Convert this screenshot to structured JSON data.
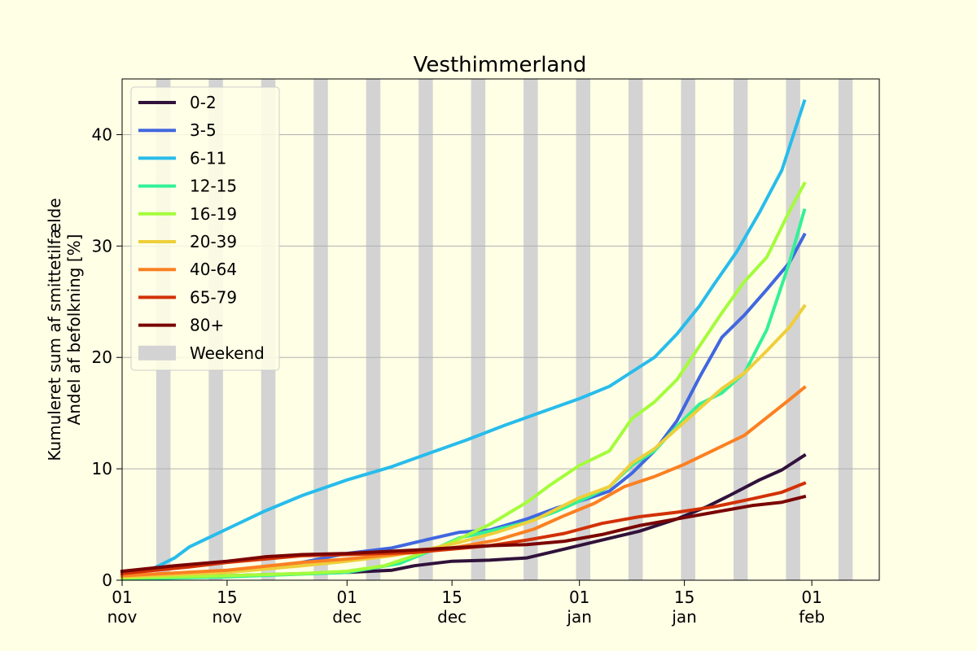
{
  "chart_data": {
    "type": "line",
    "title": "Vesthimmerland",
    "ylabel_line1": "Kumuleret sum af smittetilfælde",
    "ylabel_line2": "Andel af befolkning [%]",
    "xlabel": "",
    "ylim": [
      0,
      45
    ],
    "yticks": [
      0,
      10,
      20,
      30,
      40
    ],
    "xlim": [
      "2021-11-01",
      "2022-02-10"
    ],
    "xticks": [
      {
        "date": "2021-11-01",
        "day": "01",
        "month": "nov"
      },
      {
        "date": "2021-11-15",
        "day": "15",
        "month": "nov"
      },
      {
        "date": "2021-12-01",
        "day": "01",
        "month": "dec"
      },
      {
        "date": "2021-12-15",
        "day": "15",
        "month": "dec"
      },
      {
        "date": "2022-01-01",
        "day": "01",
        "month": "jan"
      },
      {
        "date": "2022-01-15",
        "day": "15",
        "month": "jan"
      },
      {
        "date": "2022-02-01",
        "day": "01",
        "month": "feb"
      }
    ],
    "grid": "y",
    "legend": "top-left",
    "weekend_label": "Weekend",
    "weekend_color": "#d3d3d3",
    "weekends": [
      "2021-11-06",
      "2021-11-13",
      "2021-11-20",
      "2021-11-27",
      "2021-12-04",
      "2021-12-11",
      "2021-12-18",
      "2021-12-25",
      "2022-01-01",
      "2022-01-08",
      "2022-01-15",
      "2022-01-22",
      "2022-01-29",
      "2022-02-05"
    ],
    "series": [
      {
        "name": "0-2",
        "color": "#30123b",
        "points": [
          [
            "2021-11-01",
            0.2
          ],
          [
            "2021-11-15",
            0.4
          ],
          [
            "2021-12-01",
            0.7
          ],
          [
            "2021-12-07",
            0.9
          ],
          [
            "2021-12-10",
            1.3
          ],
          [
            "2021-12-15",
            1.7
          ],
          [
            "2021-12-20",
            1.8
          ],
          [
            "2021-12-25",
            2.0
          ],
          [
            "2021-12-30",
            2.8
          ],
          [
            "2022-01-04",
            3.6
          ],
          [
            "2022-01-09",
            4.4
          ],
          [
            "2022-01-14",
            5.5
          ],
          [
            "2022-01-18",
            6.6
          ],
          [
            "2022-01-21",
            7.6
          ],
          [
            "2022-01-25",
            9.0
          ],
          [
            "2022-01-28",
            9.9
          ],
          [
            "2022-01-31",
            11.2
          ]
        ]
      },
      {
        "name": "3-5",
        "color": "#4167e0",
        "points": [
          [
            "2021-11-01",
            0.2
          ],
          [
            "2021-11-15",
            0.8
          ],
          [
            "2021-11-25",
            1.6
          ],
          [
            "2021-12-01",
            2.4
          ],
          [
            "2021-12-07",
            2.9
          ],
          [
            "2021-12-12",
            3.7
          ],
          [
            "2021-12-16",
            4.3
          ],
          [
            "2021-12-20",
            4.5
          ],
          [
            "2021-12-25",
            5.5
          ],
          [
            "2021-12-29",
            6.5
          ],
          [
            "2022-01-02",
            7.3
          ],
          [
            "2022-01-05",
            8.0
          ],
          [
            "2022-01-08",
            9.6
          ],
          [
            "2022-01-11",
            11.6
          ],
          [
            "2022-01-14",
            14.3
          ],
          [
            "2022-01-17",
            18.2
          ],
          [
            "2022-01-20",
            21.8
          ],
          [
            "2022-01-23",
            23.8
          ],
          [
            "2022-01-26",
            26.1
          ],
          [
            "2022-01-29",
            28.5
          ],
          [
            "2022-01-31",
            31.0
          ]
        ]
      },
      {
        "name": "6-11",
        "color": "#28bceb",
        "points": [
          [
            "2021-11-01",
            0.3
          ],
          [
            "2021-11-05",
            1.0
          ],
          [
            "2021-11-08",
            2.0
          ],
          [
            "2021-11-10",
            3.0
          ],
          [
            "2021-11-15",
            4.6
          ],
          [
            "2021-11-20",
            6.2
          ],
          [
            "2021-11-25",
            7.6
          ],
          [
            "2021-12-01",
            9.0
          ],
          [
            "2021-12-07",
            10.2
          ],
          [
            "2021-12-12",
            11.4
          ],
          [
            "2021-12-17",
            12.6
          ],
          [
            "2021-12-22",
            13.9
          ],
          [
            "2021-12-27",
            15.1
          ],
          [
            "2022-01-01",
            16.3
          ],
          [
            "2022-01-05",
            17.4
          ],
          [
            "2022-01-08",
            18.7
          ],
          [
            "2022-01-11",
            20.0
          ],
          [
            "2022-01-14",
            22.1
          ],
          [
            "2022-01-17",
            24.6
          ],
          [
            "2022-01-19",
            26.6
          ],
          [
            "2022-01-22",
            29.5
          ],
          [
            "2022-01-25",
            33.0
          ],
          [
            "2022-01-28",
            36.8
          ],
          [
            "2022-01-31",
            43.0
          ]
        ]
      },
      {
        "name": "12-15",
        "color": "#32f197",
        "points": [
          [
            "2021-11-01",
            0.1
          ],
          [
            "2021-11-15",
            0.3
          ],
          [
            "2021-12-01",
            0.7
          ],
          [
            "2021-12-08",
            1.5
          ],
          [
            "2021-12-12",
            2.6
          ],
          [
            "2021-12-16",
            3.8
          ],
          [
            "2021-12-20",
            4.4
          ],
          [
            "2021-12-25",
            5.2
          ],
          [
            "2021-12-29",
            6.2
          ],
          [
            "2022-01-02",
            7.4
          ],
          [
            "2022-01-05",
            8.4
          ],
          [
            "2022-01-08",
            10.3
          ],
          [
            "2022-01-11",
            11.6
          ],
          [
            "2022-01-14",
            13.8
          ],
          [
            "2022-01-17",
            15.8
          ],
          [
            "2022-01-20",
            16.8
          ],
          [
            "2022-01-23",
            18.6
          ],
          [
            "2022-01-26",
            22.5
          ],
          [
            "2022-01-29",
            28.5
          ],
          [
            "2022-01-31",
            33.2
          ]
        ]
      },
      {
        "name": "16-19",
        "color": "#a4fc3c",
        "points": [
          [
            "2021-11-01",
            0.2
          ],
          [
            "2021-11-15",
            0.4
          ],
          [
            "2021-11-25",
            0.6
          ],
          [
            "2021-12-01",
            0.8
          ],
          [
            "2021-12-06",
            1.3
          ],
          [
            "2021-12-10",
            2.2
          ],
          [
            "2021-12-15",
            3.4
          ],
          [
            "2021-12-20",
            5.0
          ],
          [
            "2021-12-25",
            7.0
          ],
          [
            "2021-12-28",
            8.5
          ],
          [
            "2022-01-01",
            10.3
          ],
          [
            "2022-01-05",
            11.6
          ],
          [
            "2022-01-08",
            14.5
          ],
          [
            "2022-01-11",
            16.0
          ],
          [
            "2022-01-14",
            18.0
          ],
          [
            "2022-01-17",
            21.0
          ],
          [
            "2022-01-20",
            24.0
          ],
          [
            "2022-01-23",
            26.8
          ],
          [
            "2022-01-26",
            29.0
          ],
          [
            "2022-01-29",
            33.1
          ],
          [
            "2022-01-31",
            35.6
          ]
        ]
      },
      {
        "name": "20-39",
        "color": "#eecf3a",
        "points": [
          [
            "2021-11-01",
            0.3
          ],
          [
            "2021-11-15",
            0.7
          ],
          [
            "2021-11-25",
            1.3
          ],
          [
            "2021-12-01",
            1.7
          ],
          [
            "2021-12-07",
            2.2
          ],
          [
            "2021-12-12",
            2.8
          ],
          [
            "2021-12-16",
            3.4
          ],
          [
            "2021-12-21",
            4.3
          ],
          [
            "2021-12-26",
            5.4
          ],
          [
            "2022-01-01",
            7.4
          ],
          [
            "2022-01-05",
            8.4
          ],
          [
            "2022-01-08",
            10.5
          ],
          [
            "2022-01-11",
            11.8
          ],
          [
            "2022-01-14",
            13.6
          ],
          [
            "2022-01-17",
            15.4
          ],
          [
            "2022-01-20",
            17.2
          ],
          [
            "2022-01-23",
            18.6
          ],
          [
            "2022-01-26",
            20.6
          ],
          [
            "2022-01-29",
            22.7
          ],
          [
            "2022-01-31",
            24.6
          ]
        ]
      },
      {
        "name": "40-64",
        "color": "#fb8022",
        "points": [
          [
            "2021-11-01",
            0.4
          ],
          [
            "2021-11-15",
            0.9
          ],
          [
            "2021-11-25",
            1.6
          ],
          [
            "2021-12-01",
            1.9
          ],
          [
            "2021-12-07",
            2.3
          ],
          [
            "2021-12-12",
            2.6
          ],
          [
            "2021-12-16",
            3.0
          ],
          [
            "2021-12-21",
            3.6
          ],
          [
            "2021-12-26",
            4.6
          ],
          [
            "2021-12-30",
            5.8
          ],
          [
            "2022-01-03",
            6.9
          ],
          [
            "2022-01-07",
            8.4
          ],
          [
            "2022-01-11",
            9.3
          ],
          [
            "2022-01-15",
            10.4
          ],
          [
            "2022-01-19",
            11.7
          ],
          [
            "2022-01-23",
            13.0
          ],
          [
            "2022-01-26",
            14.6
          ],
          [
            "2022-01-29",
            16.2
          ],
          [
            "2022-01-31",
            17.3
          ]
        ]
      },
      {
        "name": "65-79",
        "color": "#d23105",
        "points": [
          [
            "2021-11-01",
            0.6
          ],
          [
            "2021-11-10",
            1.2
          ],
          [
            "2021-11-15",
            1.6
          ],
          [
            "2021-11-25",
            2.2
          ],
          [
            "2021-12-01",
            2.3
          ],
          [
            "2021-12-10",
            2.5
          ],
          [
            "2021-12-15",
            2.8
          ],
          [
            "2021-12-20",
            3.1
          ],
          [
            "2021-12-25",
            3.6
          ],
          [
            "2021-12-30",
            4.2
          ],
          [
            "2022-01-04",
            5.1
          ],
          [
            "2022-01-09",
            5.7
          ],
          [
            "2022-01-14",
            6.1
          ],
          [
            "2022-01-19",
            6.6
          ],
          [
            "2022-01-24",
            7.3
          ],
          [
            "2022-01-28",
            7.9
          ],
          [
            "2022-01-31",
            8.7
          ]
        ]
      },
      {
        "name": "80+",
        "color": "#7a0403",
        "points": [
          [
            "2021-11-01",
            0.8
          ],
          [
            "2021-11-08",
            1.3
          ],
          [
            "2021-11-15",
            1.7
          ],
          [
            "2021-11-20",
            2.1
          ],
          [
            "2021-11-25",
            2.3
          ],
          [
            "2021-12-01",
            2.4
          ],
          [
            "2021-12-10",
            2.7
          ],
          [
            "2021-12-15",
            2.9
          ],
          [
            "2021-12-20",
            3.1
          ],
          [
            "2021-12-25",
            3.2
          ],
          [
            "2021-12-30",
            3.5
          ],
          [
            "2022-01-04",
            4.1
          ],
          [
            "2022-01-09",
            4.9
          ],
          [
            "2022-01-14",
            5.5
          ],
          [
            "2022-01-19",
            6.1
          ],
          [
            "2022-01-24",
            6.7
          ],
          [
            "2022-01-28",
            7.0
          ],
          [
            "2022-01-31",
            7.5
          ]
        ]
      }
    ]
  }
}
